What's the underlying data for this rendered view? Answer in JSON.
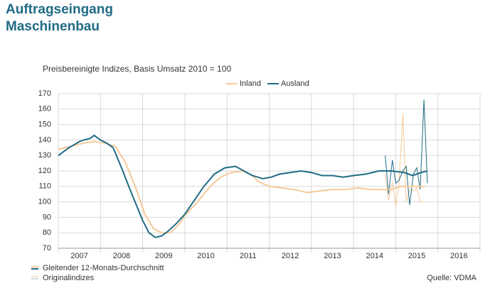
{
  "chart_data": {
    "type": "line",
    "title_lines": [
      "Auftragseingang",
      "Maschinenbau"
    ],
    "subtitle": "Preisbereinigte Indizes, Basis Umsatz 2010 = 100",
    "categories": [
      "2007",
      "2008",
      "2009",
      "2010",
      "2011",
      "2012",
      "2013",
      "2014",
      "2015",
      "2016"
    ],
    "xlim": [
      2007,
      2017
    ],
    "ylim": [
      70,
      170
    ],
    "yticks": [
      70,
      80,
      90,
      100,
      110,
      120,
      130,
      140,
      150,
      160,
      170
    ],
    "grid": true,
    "legend": "top",
    "series": [
      {
        "name": "Inland",
        "color": "#f5c99a",
        "x": [
          2007.0,
          2007.3,
          2007.6,
          2007.85,
          2008.1,
          2008.35,
          2008.6,
          2008.85,
          2009.05,
          2009.25,
          2009.45,
          2009.65,
          2009.85,
          2010.0,
          2010.3,
          2010.6,
          2010.85,
          2011.1,
          2011.4,
          2011.6,
          2011.75,
          2012.0,
          2012.3,
          2012.6,
          2012.9,
          2013.2,
          2013.5,
          2013.8,
          2014.1,
          2014.4,
          2014.7,
          2014.9,
          2015.1,
          2015.4,
          2015.7
        ],
        "values": [
          134,
          136,
          138,
          139,
          138,
          136,
          125,
          108,
          92,
          83,
          80,
          80,
          85,
          91,
          100,
          110,
          116,
          119,
          120,
          117,
          113,
          110,
          109,
          108,
          106,
          107,
          108,
          108,
          109,
          108,
          108,
          108,
          110,
          110,
          110
        ],
        "original_x": [
          2014.75,
          2014.83,
          2014.92,
          2015.0,
          2015.08,
          2015.17,
          2015.25,
          2015.33,
          2015.42,
          2015.5,
          2015.58,
          2015.67
        ],
        "original_values": [
          118,
          101,
          113,
          97,
          113,
          157,
          100,
          108,
          107,
          109,
          100,
          100
        ]
      },
      {
        "name": "Ausland",
        "color": "#1f6b85",
        "x": [
          2007.0,
          2007.25,
          2007.5,
          2007.6,
          2007.75,
          2007.85,
          2008.0,
          2008.15,
          2008.3,
          2008.5,
          2008.7,
          2008.85,
          2009.0,
          2009.15,
          2009.3,
          2009.45,
          2009.6,
          2009.8,
          2010.0,
          2010.2,
          2010.45,
          2010.7,
          2010.95,
          2011.2,
          2011.4,
          2011.6,
          2011.85,
          2012.05,
          2012.25,
          2012.5,
          2012.75,
          2013.0,
          2013.25,
          2013.5,
          2013.75,
          2014.0,
          2014.3,
          2014.6,
          2014.9,
          2015.2,
          2015.4,
          2015.6,
          2015.75
        ],
        "values": [
          130,
          135,
          139,
          140,
          141,
          143,
          140,
          138,
          135,
          122,
          108,
          98,
          88,
          80,
          77,
          78,
          81,
          86,
          92,
          100,
          110,
          118,
          122,
          123,
          120,
          117,
          115,
          116,
          118,
          119,
          120,
          119,
          117,
          117,
          116,
          117,
          118,
          120,
          120,
          119,
          117,
          119,
          120
        ],
        "original_x": [
          2014.75,
          2014.83,
          2014.92,
          2015.0,
          2015.08,
          2015.17,
          2015.25,
          2015.33,
          2015.42,
          2015.5,
          2015.58,
          2015.67,
          2015.75
        ],
        "original_values": [
          130,
          105,
          127,
          112,
          114,
          120,
          123,
          98,
          118,
          122,
          108,
          166,
          112
        ]
      }
    ],
    "bottom_legend": [
      "Gleitender 12-Monats-Durchschnitt",
      "Originalindizes"
    ],
    "source": "Quelle: VDMA"
  }
}
